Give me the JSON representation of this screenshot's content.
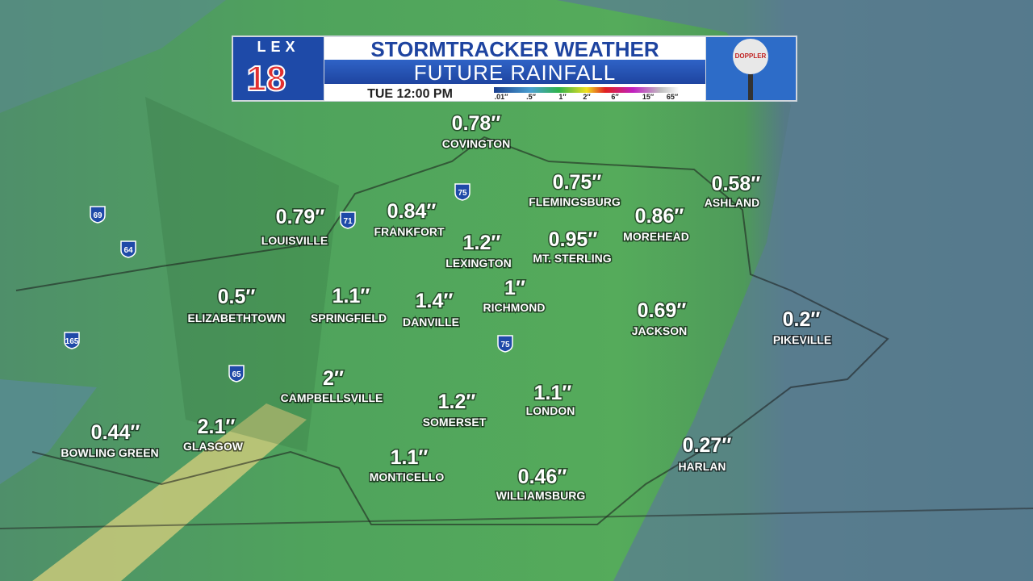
{
  "header": {
    "logo": {
      "station": "LEX",
      "number": "18"
    },
    "title": "STORMTRACKER WEATHER",
    "subtitle": "FUTURE RAINFALL",
    "time": "TUE 12:00 PM",
    "scale": [
      ".01″",
      ".5″",
      "1″",
      "2″",
      "6″",
      "15″",
      "65″"
    ],
    "radar_logo": "DOPPLER"
  },
  "cities": [
    {
      "name": "COVINGTON",
      "amount": "0.78″"
    },
    {
      "name": "FLEMINGSBURG",
      "amount": "0.75″"
    },
    {
      "name": "ASHLAND",
      "amount": "0.58″"
    },
    {
      "name": "LOUISVILLE",
      "amount": "0.79″"
    },
    {
      "name": "FRANKFORT",
      "amount": "0.84″"
    },
    {
      "name": "MOREHEAD",
      "amount": "0.86″"
    },
    {
      "name": "LEXINGTON",
      "amount": "1.2″"
    },
    {
      "name": "MT. STERLING",
      "amount": "0.95″"
    },
    {
      "name": "ELIZABETHTOWN",
      "amount": "0.5″"
    },
    {
      "name": "SPRINGFIELD",
      "amount": "1.1″"
    },
    {
      "name": "DANVILLE",
      "amount": "1.4″"
    },
    {
      "name": "RICHMOND",
      "amount": "1″"
    },
    {
      "name": "JACKSON",
      "amount": "0.69″"
    },
    {
      "name": "PIKEVILLE",
      "amount": "0.2″"
    },
    {
      "name": "CAMPBELLSVILLE",
      "amount": "2″"
    },
    {
      "name": "SOMERSET",
      "amount": "1.2″"
    },
    {
      "name": "LONDON",
      "amount": "1.1″"
    },
    {
      "name": "BOWLING GREEN",
      "amount": "0.44″"
    },
    {
      "name": "GLASGOW",
      "amount": "2.1″"
    },
    {
      "name": "HARLAN",
      "amount": "0.27″"
    },
    {
      "name": "MONTICELLO",
      "amount": "1.1″"
    },
    {
      "name": "WILLIAMSBURG",
      "amount": "0.46″"
    }
  ],
  "interstates": [
    "69",
    "64",
    "71",
    "75",
    "165",
    "65",
    "75"
  ]
}
